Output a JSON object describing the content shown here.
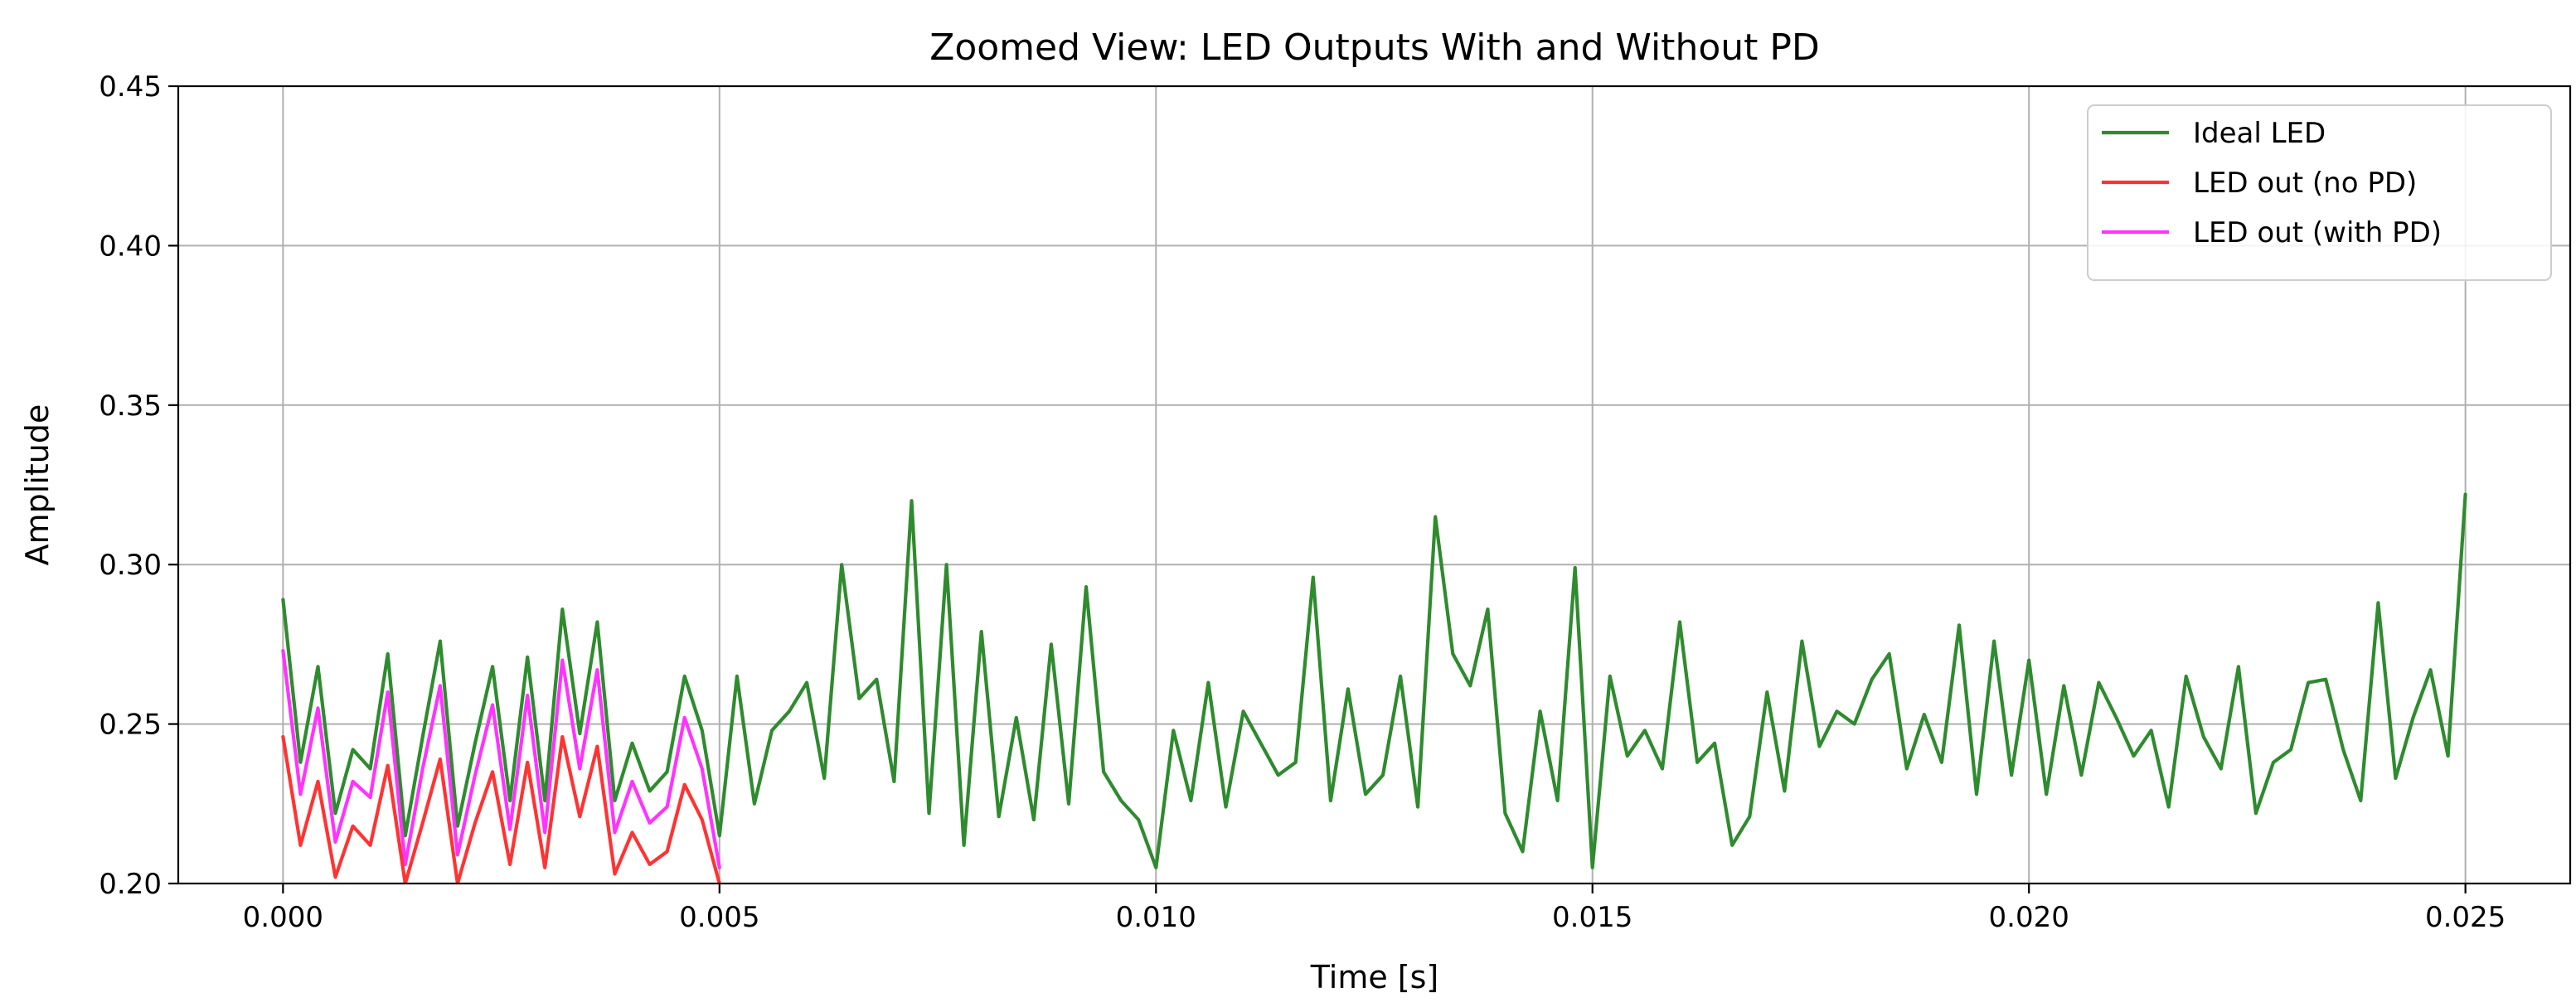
{
  "chart_data": {
    "type": "line",
    "title": "Zoomed View: LED Outputs With and Without PD",
    "xlabel": "Time [s]",
    "ylabel": "Amplitude",
    "xlim": [
      -0.0012,
      0.0262
    ],
    "ylim": [
      0.2,
      0.45
    ],
    "xticks": [
      0.0,
      0.005,
      0.01,
      0.015,
      0.02,
      0.025
    ],
    "xtick_labels": [
      "0.000",
      "0.005",
      "0.010",
      "0.015",
      "0.020",
      "0.025"
    ],
    "yticks": [
      0.2,
      0.25,
      0.3,
      0.35,
      0.4,
      0.45
    ],
    "ytick_labels": [
      "0.20",
      "0.25",
      "0.30",
      "0.35",
      "0.40",
      "0.45"
    ],
    "grid": true,
    "legend_position": "top-right",
    "series": [
      {
        "name": "Ideal LED",
        "color": "#2e8b2e",
        "x": [
          0.0,
          0.0002,
          0.0004,
          0.0006,
          0.0008,
          0.001,
          0.0012,
          0.0014,
          0.0016,
          0.0018,
          0.002,
          0.0022,
          0.0024,
          0.0026,
          0.0028,
          0.003,
          0.0032,
          0.0034,
          0.0036,
          0.0038,
          0.004,
          0.0042,
          0.0044,
          0.0046,
          0.0048,
          0.005,
          0.0052,
          0.0054,
          0.0056,
          0.0058,
          0.006,
          0.0062,
          0.0064,
          0.0066,
          0.0068,
          0.007,
          0.0072,
          0.0074,
          0.0076,
          0.0078,
          0.008,
          0.0082,
          0.0084,
          0.0086,
          0.0088,
          0.009,
          0.0092,
          0.0094,
          0.0096,
          0.0098,
          0.01,
          0.0102,
          0.0104,
          0.0106,
          0.0108,
          0.011,
          0.0112,
          0.0114,
          0.0116,
          0.0118,
          0.012,
          0.0122,
          0.0124,
          0.0126,
          0.0128,
          0.013,
          0.0132,
          0.0134,
          0.0136,
          0.0138,
          0.014,
          0.0142,
          0.0144,
          0.0146,
          0.0148,
          0.015,
          0.0152,
          0.0154,
          0.0156,
          0.0158,
          0.016,
          0.0162,
          0.0164,
          0.0166,
          0.0168,
          0.017,
          0.0172,
          0.0174,
          0.0176,
          0.0178,
          0.018,
          0.0182,
          0.0184,
          0.0186,
          0.0188,
          0.019,
          0.0192,
          0.0194,
          0.0196,
          0.0198,
          0.02,
          0.0202,
          0.0204,
          0.0206,
          0.0208,
          0.021,
          0.0212,
          0.0214,
          0.0216,
          0.0218,
          0.022,
          0.0222,
          0.0224,
          0.0226,
          0.0228,
          0.023,
          0.0232,
          0.0234,
          0.0236,
          0.0238,
          0.024,
          0.0242,
          0.0244,
          0.0246,
          0.0248,
          0.025
        ],
        "y": [
          0.289,
          0.238,
          0.268,
          0.222,
          0.242,
          0.236,
          0.272,
          0.215,
          0.246,
          0.276,
          0.218,
          0.244,
          0.268,
          0.226,
          0.271,
          0.226,
          0.286,
          0.247,
          0.282,
          0.226,
          0.244,
          0.229,
          0.235,
          0.265,
          0.248,
          0.215,
          0.265,
          0.225,
          0.248,
          0.254,
          0.263,
          0.233,
          0.3,
          0.258,
          0.264,
          0.232,
          0.32,
          0.222,
          0.3,
          0.212,
          0.279,
          0.221,
          0.252,
          0.22,
          0.275,
          0.225,
          0.293,
          0.235,
          0.226,
          0.22,
          0.205,
          0.248,
          0.226,
          0.263,
          0.224,
          0.254,
          0.244,
          0.234,
          0.238,
          0.296,
          0.226,
          0.261,
          0.228,
          0.234,
          0.265,
          0.224,
          0.315,
          0.272,
          0.262,
          0.286,
          0.222,
          0.21,
          0.254,
          0.226,
          0.299,
          0.205,
          0.265,
          0.24,
          0.248,
          0.236,
          0.282,
          0.238,
          0.244,
          0.212,
          0.221,
          0.26,
          0.229,
          0.276,
          0.243,
          0.254,
          0.25,
          0.264,
          0.272,
          0.236,
          0.253,
          0.238,
          0.281,
          0.228,
          0.276,
          0.234,
          0.27,
          0.228,
          0.262,
          0.234,
          0.263,
          0.252,
          0.24,
          0.248,
          0.224,
          0.265,
          0.246,
          0.236,
          0.268,
          0.222,
          0.238,
          0.242,
          0.263,
          0.264,
          0.242,
          0.226,
          0.288,
          0.233,
          0.252,
          0.267,
          0.24,
          0.322
        ],
        "note_partial": true
      },
      {
        "name": "LED out (no PD)",
        "color": "#ff3333",
        "x": [
          0.0,
          0.0002,
          0.0004,
          0.0006,
          0.0008,
          0.001,
          0.0012,
          0.0014,
          0.0016,
          0.0018,
          0.002,
          0.0022,
          0.0024,
          0.0026,
          0.0028,
          0.003,
          0.0032,
          0.0034,
          0.0036,
          0.0038,
          0.004,
          0.0042,
          0.0044,
          0.0046,
          0.0048,
          0.005
        ],
        "y": [
          0.246,
          0.212,
          0.232,
          0.202,
          0.218,
          0.212,
          0.237,
          0.2,
          0.219,
          0.239,
          0.2,
          0.219,
          0.235,
          0.206,
          0.238,
          0.205,
          0.246,
          0.221,
          0.243,
          0.203,
          0.216,
          0.206,
          0.21,
          0.231,
          0.22,
          0.2
        ]
      },
      {
        "name": "LED out (with PD)",
        "color": "#ff33ff",
        "x": [
          0.0,
          0.0002,
          0.0004,
          0.0006,
          0.0008,
          0.001,
          0.0012,
          0.0014,
          0.0016,
          0.0018,
          0.002,
          0.0022,
          0.0024,
          0.0026,
          0.0028,
          0.003,
          0.0032,
          0.0034,
          0.0036,
          0.0038,
          0.004,
          0.0042,
          0.0044,
          0.0046,
          0.0048,
          0.005
        ],
        "y": [
          0.273,
          0.228,
          0.255,
          0.213,
          0.232,
          0.227,
          0.26,
          0.206,
          0.236,
          0.262,
          0.209,
          0.234,
          0.256,
          0.217,
          0.259,
          0.216,
          0.27,
          0.236,
          0.267,
          0.216,
          0.232,
          0.219,
          0.224,
          0.252,
          0.236,
          0.205
        ]
      }
    ]
  }
}
